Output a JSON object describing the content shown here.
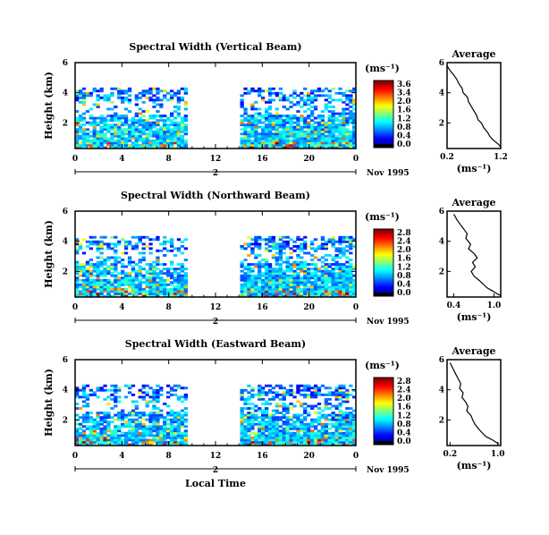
{
  "chart_data": [
    {
      "type": "heatmap",
      "title": "Spectral Width (Vertical Beam)",
      "ylabel": "Height (km)",
      "xlabel": "",
      "x_ticks": [
        "0",
        "4",
        "8",
        "12",
        "16",
        "20",
        "0"
      ],
      "y_ticks": [
        "6",
        "4",
        "2"
      ],
      "date_bar_label": "2",
      "date_label": "Nov 1995",
      "xlim": [
        0,
        24
      ],
      "ylim": [
        0.3,
        6
      ],
      "gap": [
        9.4,
        14.0
      ],
      "colorbar_label": "(ms⁻¹)",
      "colorbar_ticks": [
        "3.6",
        "3.4",
        "2.0",
        "1.6",
        "1.2",
        "0.8",
        "0.4",
        "0.0"
      ],
      "seed": 11,
      "profile": {
        "title": "Average",
        "x_ticks": [
          "0.2",
          "1.2"
        ],
        "y_ticks": [
          "6",
          "4",
          "2"
        ],
        "xlim": [
          0.2,
          1.2
        ],
        "ylim": [
          0.3,
          6
        ],
        "xlabel": "(ms⁻¹)",
        "points": [
          [
            0.2,
            5.8
          ],
          [
            0.25,
            5.5
          ],
          [
            0.32,
            5.2
          ],
          [
            0.38,
            4.9
          ],
          [
            0.42,
            4.6
          ],
          [
            0.48,
            4.3
          ],
          [
            0.5,
            4.0
          ],
          [
            0.58,
            3.7
          ],
          [
            0.6,
            3.4
          ],
          [
            0.65,
            3.1
          ],
          [
            0.7,
            2.8
          ],
          [
            0.75,
            2.5
          ],
          [
            0.78,
            2.2
          ],
          [
            0.84,
            2.0
          ],
          [
            0.88,
            1.7
          ],
          [
            0.95,
            1.4
          ],
          [
            1.0,
            1.1
          ],
          [
            1.05,
            0.9
          ],
          [
            1.15,
            0.6
          ],
          [
            1.2,
            0.4
          ]
        ]
      }
    },
    {
      "type": "heatmap",
      "title": "Spectral Width (Northward Beam)",
      "ylabel": "Height (km)",
      "xlabel": "",
      "x_ticks": [
        "0",
        "4",
        "8",
        "12",
        "16",
        "20",
        "0"
      ],
      "y_ticks": [
        "6",
        "4",
        "2"
      ],
      "date_bar_label": "2",
      "date_label": "Nov 1995",
      "xlim": [
        0,
        24
      ],
      "ylim": [
        0.3,
        6
      ],
      "gap": [
        9.4,
        14.0
      ],
      "colorbar_label": "(ms⁻¹)",
      "colorbar_ticks": [
        "2.8",
        "2.4",
        "2.0",
        "1.6",
        "1.2",
        "0.8",
        "0.4",
        "0.0"
      ],
      "seed": 23,
      "profile": {
        "title": "Average",
        "x_ticks": [
          "0.4",
          "1.0"
        ],
        "y_ticks": [
          "6",
          "4",
          "2"
        ],
        "xlim": [
          0.3,
          1.1
        ],
        "ylim": [
          0.3,
          6
        ],
        "xlabel": "(ms⁻¹)",
        "points": [
          [
            0.4,
            5.8
          ],
          [
            0.45,
            5.4
          ],
          [
            0.5,
            5.1
          ],
          [
            0.55,
            4.8
          ],
          [
            0.6,
            4.5
          ],
          [
            0.58,
            4.2
          ],
          [
            0.65,
            3.8
          ],
          [
            0.62,
            3.5
          ],
          [
            0.7,
            3.2
          ],
          [
            0.75,
            2.9
          ],
          [
            0.68,
            2.6
          ],
          [
            0.72,
            2.3
          ],
          [
            0.66,
            2.0
          ],
          [
            0.7,
            1.7
          ],
          [
            0.78,
            1.4
          ],
          [
            0.85,
            1.1
          ],
          [
            0.9,
            0.9
          ],
          [
            0.98,
            0.7
          ],
          [
            1.05,
            0.5
          ],
          [
            1.1,
            0.4
          ]
        ]
      }
    },
    {
      "type": "heatmap",
      "title": "Spectral Width (Eastward Beam)",
      "ylabel": "Height (km)",
      "xlabel": "Local Time",
      "x_ticks": [
        "0",
        "4",
        "8",
        "12",
        "16",
        "20",
        "0"
      ],
      "y_ticks": [
        "6",
        "4",
        "2"
      ],
      "date_bar_label": "2",
      "date_label": "Nov 1995",
      "xlim": [
        0,
        24
      ],
      "ylim": [
        0.3,
        6
      ],
      "gap": [
        9.4,
        14.0
      ],
      "colorbar_label": "(ms⁻¹)",
      "colorbar_ticks": [
        "2.8",
        "2.4",
        "2.0",
        "1.6",
        "1.2",
        "0.8",
        "0.4",
        "0.0"
      ],
      "seed": 37,
      "profile": {
        "title": "Average",
        "x_ticks": [
          "0.2",
          "1.0"
        ],
        "y_ticks": [
          "6",
          "4",
          "2"
        ],
        "xlim": [
          0.15,
          1.05
        ],
        "ylim": [
          0.3,
          6
        ],
        "xlabel": "(ms⁻¹)",
        "points": [
          [
            0.2,
            5.8
          ],
          [
            0.25,
            5.4
          ],
          [
            0.3,
            5.0
          ],
          [
            0.34,
            4.7
          ],
          [
            0.38,
            4.4
          ],
          [
            0.36,
            4.1
          ],
          [
            0.42,
            3.8
          ],
          [
            0.4,
            3.5
          ],
          [
            0.46,
            3.2
          ],
          [
            0.5,
            2.9
          ],
          [
            0.48,
            2.6
          ],
          [
            0.55,
            2.3
          ],
          [
            0.58,
            2.0
          ],
          [
            0.62,
            1.7
          ],
          [
            0.68,
            1.4
          ],
          [
            0.75,
            1.1
          ],
          [
            0.8,
            0.9
          ],
          [
            0.9,
            0.7
          ],
          [
            0.98,
            0.5
          ],
          [
            1.02,
            0.4
          ]
        ]
      }
    }
  ]
}
